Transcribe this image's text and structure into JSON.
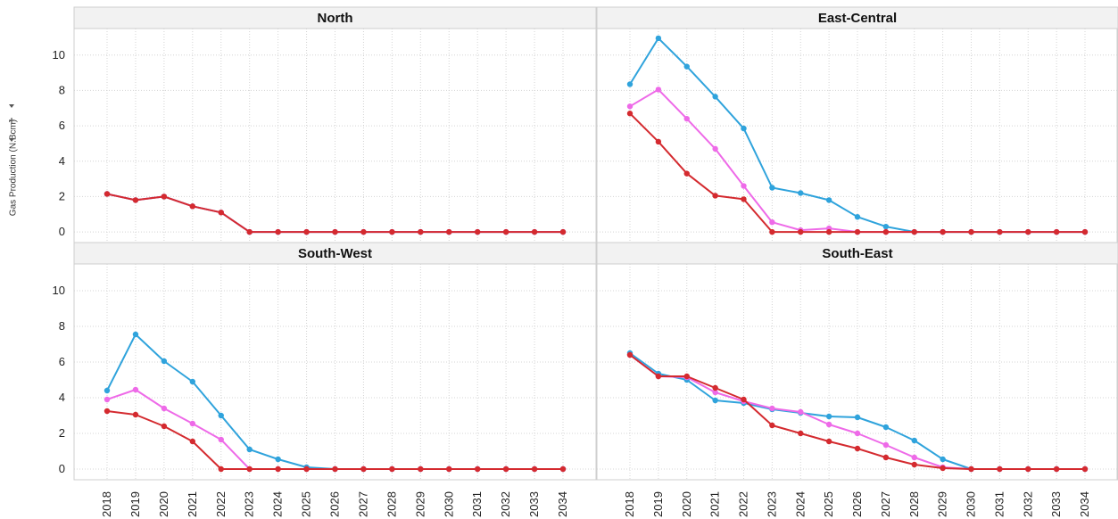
{
  "ylabel_shelf": {
    "label": "Gas Production (N.Bcm)",
    "sort_icon": "chevron-down-icon",
    "add_icon": "plus-icon",
    "menu_icon": "chevron-down-icon"
  },
  "colors": {
    "blue": "#2fa3dc",
    "pink": "#ee6ae8",
    "red": "#d42a2f",
    "header_bg": "#f2f2f2",
    "grid": "#d4d4d4"
  },
  "chart_data": {
    "type": "line",
    "facet_layout": "2x2",
    "ylabel": "Gas Production (N.Bcm)",
    "ylim": [
      -0.6,
      11.5
    ],
    "yticks": [
      0,
      2,
      4,
      6,
      8,
      10
    ],
    "grid": true,
    "x": [
      "2018",
      "2019",
      "2020",
      "2021",
      "2022",
      "2023",
      "2024",
      "2025",
      "2026",
      "2027",
      "2028",
      "2029",
      "2030",
      "2031",
      "2032",
      "2033",
      "2034"
    ],
    "panels": [
      {
        "title": "North",
        "series": [
          {
            "color": "#2fa3dc",
            "values": [
              2.15,
              1.8,
              2.0,
              1.45,
              1.1,
              0,
              0,
              0,
              0,
              0,
              0,
              0,
              0,
              0,
              0,
              0,
              0
            ]
          },
          {
            "color": "#ee6ae8",
            "values": [
              2.15,
              1.8,
              2.0,
              1.45,
              1.1,
              0,
              0,
              0,
              0,
              0,
              0,
              0,
              0,
              0,
              0,
              0,
              0
            ]
          },
          {
            "color": "#d42a2f",
            "values": [
              2.15,
              1.8,
              2.0,
              1.45,
              1.1,
              0,
              0,
              0,
              0,
              0,
              0,
              0,
              0,
              0,
              0,
              0,
              0
            ]
          }
        ]
      },
      {
        "title": "East-Central",
        "series": [
          {
            "color": "#2fa3dc",
            "values": [
              8.35,
              10.95,
              9.35,
              7.65,
              5.85,
              2.5,
              2.2,
              1.8,
              0.85,
              0.3,
              0,
              0,
              0,
              0,
              0,
              0,
              0
            ]
          },
          {
            "color": "#ee6ae8",
            "values": [
              7.1,
              8.05,
              6.4,
              4.7,
              2.6,
              0.55,
              0.1,
              0.2,
              0,
              0,
              0,
              0,
              0,
              0,
              0,
              0,
              0
            ]
          },
          {
            "color": "#d42a2f",
            "values": [
              6.7,
              5.1,
              3.3,
              2.05,
              1.85,
              0,
              0,
              0,
              0,
              0,
              0,
              0,
              0,
              0,
              0,
              0,
              0
            ]
          }
        ]
      },
      {
        "title": "South-West",
        "series": [
          {
            "color": "#2fa3dc",
            "values": [
              4.4,
              7.55,
              6.05,
              4.9,
              3.0,
              1.1,
              0.55,
              0.1,
              0,
              0,
              0,
              0,
              0,
              0,
              0,
              0,
              0
            ]
          },
          {
            "color": "#ee6ae8",
            "values": [
              3.9,
              4.45,
              3.4,
              2.55,
              1.65,
              0,
              0,
              0,
              0,
              0,
              0,
              0,
              0,
              0,
              0,
              0,
              0
            ]
          },
          {
            "color": "#d42a2f",
            "values": [
              3.25,
              3.05,
              2.4,
              1.55,
              0,
              0,
              0,
              0,
              0,
              0,
              0,
              0,
              0,
              0,
              0,
              0,
              0
            ]
          }
        ]
      },
      {
        "title": "South-East",
        "series": [
          {
            "color": "#2fa3dc",
            "values": [
              6.5,
              5.35,
              5.0,
              3.85,
              3.7,
              3.35,
              3.15,
              2.95,
              2.9,
              2.35,
              1.6,
              0.55,
              0,
              0,
              0,
              0,
              0
            ]
          },
          {
            "color": "#ee6ae8",
            "values": [
              6.4,
              5.2,
              5.15,
              4.3,
              3.8,
              3.4,
              3.2,
              2.5,
              2.0,
              1.35,
              0.65,
              0.1,
              0,
              0,
              0,
              0,
              0
            ]
          },
          {
            "color": "#d42a2f",
            "values": [
              6.4,
              5.2,
              5.2,
              4.55,
              3.9,
              2.45,
              2.0,
              1.55,
              1.15,
              0.65,
              0.25,
              0.05,
              0,
              0,
              0,
              0,
              0
            ]
          }
        ]
      }
    ]
  }
}
